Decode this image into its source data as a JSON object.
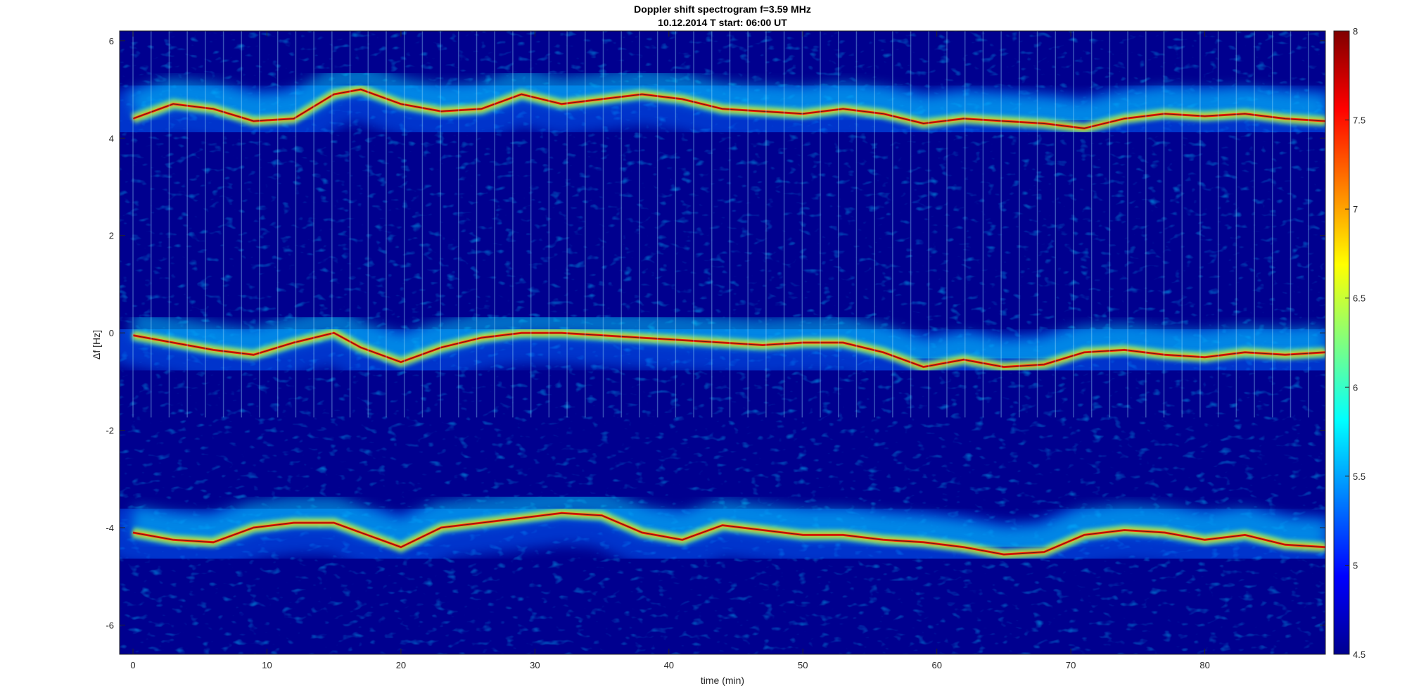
{
  "chart_data": {
    "type": "heatmap",
    "title": "Doppler shift spectrogram f=3.59 MHz",
    "subtitle": "10.12.2014   T start: 06:00 UT",
    "xlabel": "time (min)",
    "ylabel": "Δf [Hz]",
    "xlim": [
      -1,
      89
    ],
    "ylim": [
      -6.6,
      6.2
    ],
    "xticks": [
      "0",
      "10",
      "20",
      "30",
      "40",
      "50",
      "60",
      "70",
      "80"
    ],
    "yticks": [
      "-6",
      "-4",
      "-2",
      "0",
      "2",
      "4",
      "6"
    ],
    "colorbar": {
      "limits": [
        4.5,
        8
      ],
      "ticks": [
        "4.5",
        "5",
        "5.5",
        "6",
        "6.5",
        "7",
        "7.5",
        "8"
      ],
      "colormap": "jet"
    },
    "grid": false,
    "bands": [
      {
        "name": "upper",
        "x": [
          0,
          3,
          6,
          9,
          12,
          15,
          17,
          20,
          23,
          26,
          29,
          32,
          35,
          38,
          41,
          44,
          47,
          50,
          53,
          56,
          59,
          62,
          65,
          68,
          71,
          74,
          77,
          80,
          83,
          86,
          89
        ],
        "y": [
          4.4,
          4.7,
          4.6,
          4.35,
          4.4,
          4.9,
          5.0,
          4.7,
          4.55,
          4.6,
          4.9,
          4.7,
          4.8,
          4.9,
          4.8,
          4.6,
          4.55,
          4.5,
          4.6,
          4.5,
          4.3,
          4.4,
          4.35,
          4.3,
          4.2,
          4.4,
          4.5,
          4.45,
          4.5,
          4.4,
          4.35
        ]
      },
      {
        "name": "center",
        "x": [
          0,
          3,
          6,
          9,
          12,
          15,
          17,
          20,
          23,
          26,
          29,
          32,
          35,
          38,
          41,
          44,
          47,
          50,
          53,
          56,
          59,
          62,
          65,
          68,
          71,
          74,
          77,
          80,
          83,
          86,
          89
        ],
        "y": [
          -0.05,
          -0.2,
          -0.35,
          -0.45,
          -0.2,
          0.0,
          -0.3,
          -0.6,
          -0.3,
          -0.1,
          0.0,
          0.0,
          -0.05,
          -0.1,
          -0.15,
          -0.2,
          -0.25,
          -0.2,
          -0.2,
          -0.4,
          -0.7,
          -0.55,
          -0.7,
          -0.65,
          -0.4,
          -0.35,
          -0.45,
          -0.5,
          -0.4,
          -0.45,
          -0.4
        ]
      },
      {
        "name": "lower",
        "x": [
          0,
          3,
          6,
          9,
          12,
          15,
          17,
          20,
          23,
          26,
          29,
          32,
          35,
          38,
          41,
          44,
          47,
          50,
          53,
          56,
          59,
          62,
          65,
          68,
          71,
          74,
          77,
          80,
          83,
          86,
          89
        ],
        "y": [
          -4.1,
          -4.25,
          -4.3,
          -4.0,
          -3.9,
          -3.9,
          -4.1,
          -4.4,
          -4.0,
          -3.9,
          -3.8,
          -3.7,
          -3.75,
          -4.1,
          -4.25,
          -3.95,
          -4.05,
          -4.15,
          -4.15,
          -4.25,
          -4.3,
          -4.4,
          -4.55,
          -4.5,
          -4.15,
          -4.05,
          -4.1,
          -4.25,
          -4.15,
          -4.35,
          -4.4
        ]
      }
    ]
  },
  "colors": {
    "background_low": "#00008f",
    "mid": "#00ffff",
    "high": "#ffff00",
    "peak": "#ff0000",
    "max": "#800000"
  }
}
